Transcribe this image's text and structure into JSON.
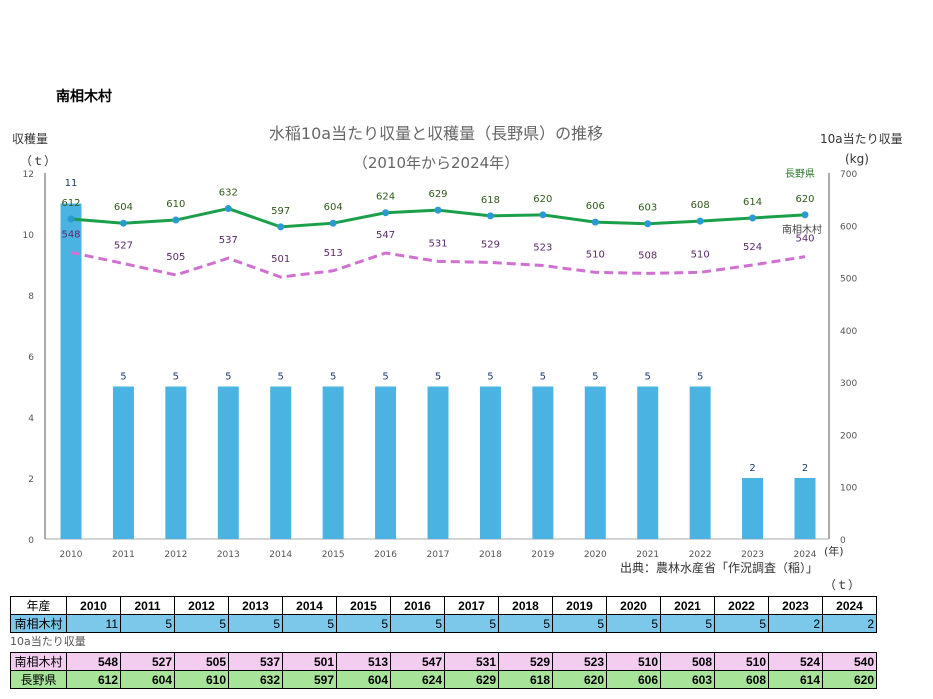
{
  "heading": "南相木村",
  "chart_data": {
    "type": "bar+line",
    "title": "水稲10a当たり収量と収穫量（長野県）の推移",
    "subtitle": "（2010年から2024年）",
    "ylabel_left": "収穫量",
    "yunit_left": "（ｔ）",
    "ylabel_right": "10a当たり収量",
    "yunit_right": "(kg)",
    "xunit": "(年)",
    "ylim_left": [
      0,
      12
    ],
    "yticks_left": [
      0,
      2,
      4,
      6,
      8,
      10,
      12
    ],
    "ylim_right": [
      0,
      700
    ],
    "yticks_right": [
      0,
      100,
      200,
      300,
      400,
      500,
      600,
      700
    ],
    "categories": [
      "2010",
      "2011",
      "2012",
      "2013",
      "2014",
      "2015",
      "2016",
      "2017",
      "2018",
      "2019",
      "2020",
      "2021",
      "2022",
      "2023",
      "2024"
    ],
    "series": [
      {
        "name": "収穫量",
        "type": "bar",
        "axis": "left",
        "color": "#4ab3e2",
        "values": [
          11,
          5,
          5,
          5,
          5,
          5,
          5,
          5,
          5,
          5,
          5,
          5,
          5,
          2,
          2
        ]
      },
      {
        "name": "長野県",
        "type": "line",
        "axis": "right",
        "color": "#1aa04a",
        "values": [
          612,
          604,
          610,
          632,
          597,
          604,
          624,
          629,
          618,
          620,
          606,
          603,
          608,
          614,
          620
        ]
      },
      {
        "name": "南相木村",
        "type": "line-dashed",
        "axis": "right",
        "color": "#d070d0",
        "values": [
          548,
          527,
          505,
          537,
          501,
          513,
          547,
          531,
          529,
          523,
          510,
          508,
          510,
          524,
          540
        ]
      }
    ],
    "source": "出典：農林水産省「作況調査（稲）」"
  },
  "table": {
    "unit": "（ｔ）",
    "header_label": "年産",
    "harvest_label": "南相木村",
    "yield_caption": "10a当たり収量",
    "village_label": "南相木村",
    "pref_label": "長野県"
  }
}
